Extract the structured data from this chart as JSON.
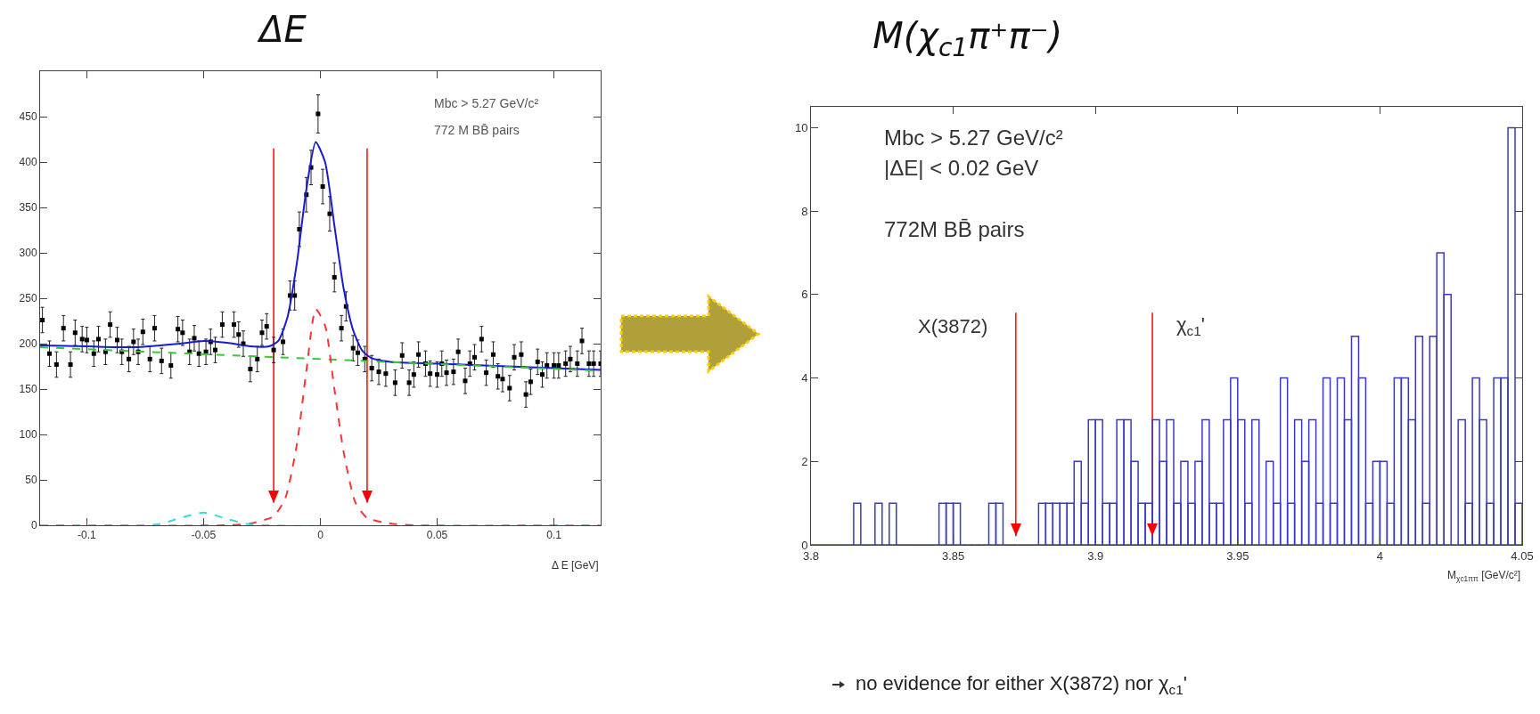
{
  "chart_data": [
    {
      "type": "scatter",
      "title": "ΔE",
      "xlabel": "Δ E [GeV]",
      "annotations": [
        "Mbc > 5.27 GeV/c²",
        "772 M BB̄ pairs"
      ],
      "xlim": [
        -0.12,
        0.12
      ],
      "ylim": [
        0,
        500
      ],
      "xticks": [
        -0.1,
        -0.05,
        0,
        0.05,
        0.1
      ],
      "yticks": [
        0,
        50,
        100,
        150,
        200,
        250,
        300,
        350,
        400,
        450
      ],
      "grid": false,
      "series": [
        {
          "type": "scatter",
          "color": "#000000",
          "marker": "square",
          "x": [
            -0.119,
            -0.116,
            -0.113,
            -0.11,
            -0.107,
            -0.105,
            -0.102,
            -0.1,
            -0.097,
            -0.095,
            -0.092,
            -0.09,
            -0.087,
            -0.085,
            -0.082,
            -0.08,
            -0.078,
            -0.076,
            -0.073,
            -0.071,
            -0.068,
            -0.064,
            -0.061,
            -0.059,
            -0.056,
            -0.054,
            -0.052,
            -0.049,
            -0.047,
            -0.045,
            -0.042,
            -0.037,
            -0.035,
            -0.033,
            -0.03,
            -0.027,
            -0.025,
            -0.023,
            -0.02,
            -0.016,
            -0.013,
            -0.011,
            -0.009,
            -0.006,
            -0.004,
            -0.001,
            0.001,
            0.004,
            0.006,
            0.009,
            0.011,
            0.014,
            0.016,
            0.019,
            0.022,
            0.025,
            0.028,
            0.032,
            0.035,
            0.038,
            0.04,
            0.042,
            0.045,
            0.047,
            0.05,
            0.052,
            0.054,
            0.057,
            0.059,
            0.062,
            0.064,
            0.066,
            0.069,
            0.071,
            0.074,
            0.076,
            0.078,
            0.081,
            0.083,
            0.086,
            0.088,
            0.09,
            0.093,
            0.095,
            0.097,
            0.1,
            0.102,
            0.105,
            0.107,
            0.11,
            0.112,
            0.115,
            0.117,
            0.12
          ],
          "values": [
            226,
            189,
            177,
            217,
            177,
            212,
            205,
            204,
            189,
            205,
            191,
            221,
            204,
            191,
            183,
            202,
            191,
            213,
            183,
            217,
            181,
            176,
            216,
            212,
            191,
            206,
            189,
            191,
            202,
            193,
            221,
            221,
            210,
            200,
            172,
            183,
            212,
            219,
            193,
            202,
            253,
            253,
            326,
            364,
            394,
            453,
            373,
            343,
            273,
            217,
            241,
            195,
            190,
            183,
            173,
            169,
            167,
            157,
            187,
            157,
            166,
            188,
            178,
            167,
            166,
            178,
            168,
            169,
            191,
            159,
            178,
            185,
            205,
            168,
            188,
            164,
            161,
            151,
            185,
            188,
            144,
            158,
            180,
            166,
            176,
            176,
            176,
            178,
            183,
            178,
            203,
            178,
            178,
            178
          ],
          "errors": [
            14,
            14,
            14,
            14,
            14,
            14,
            14,
            14,
            14,
            14,
            14,
            14,
            14,
            14,
            14,
            14,
            14,
            14,
            14,
            14,
            14,
            14,
            14,
            14,
            14,
            14,
            14,
            14,
            14,
            14,
            14,
            14,
            14,
            14,
            14,
            14,
            14,
            14,
            14,
            14,
            16,
            16,
            19,
            19,
            19,
            21,
            19,
            19,
            16,
            14,
            16,
            14,
            14,
            14,
            14,
            14,
            14,
            14,
            14,
            14,
            14,
            14,
            14,
            14,
            14,
            14,
            14,
            14,
            14,
            14,
            14,
            14,
            14,
            14,
            14,
            14,
            14,
            14,
            14,
            14,
            14,
            14,
            14,
            14,
            14,
            14,
            14,
            14,
            14,
            14,
            14,
            14,
            14,
            14
          ]
        },
        {
          "type": "line",
          "color": "#1a1ad0",
          "line_style": "solid",
          "x": [
            -0.12,
            -0.1,
            -0.08,
            -0.06,
            -0.05,
            -0.04,
            -0.03,
            -0.022,
            -0.018,
            -0.014,
            -0.01,
            -0.006,
            -0.002,
            0.002,
            0.006,
            0.01,
            0.014,
            0.018,
            0.022,
            0.03,
            0.05,
            0.08,
            0.1,
            0.12
          ],
          "values": [
            198,
            197,
            196,
            200,
            203,
            201,
            197,
            197,
            203,
            230,
            290,
            370,
            422,
            400,
            330,
            260,
            215,
            192,
            184,
            180,
            178,
            175,
            173,
            171
          ]
        },
        {
          "type": "line",
          "color": "#33cc33",
          "line_style": "dashed",
          "x": [
            -0.12,
            0.12
          ],
          "values": [
            196,
            170
          ]
        },
        {
          "type": "line",
          "color": "#ff3333",
          "line_style": "dashed",
          "x": [
            -0.12,
            -0.04,
            -0.03,
            -0.02,
            -0.015,
            -0.01,
            -0.006,
            -0.002,
            0.002,
            0.006,
            0.01,
            0.015,
            0.02,
            0.03,
            0.04,
            0.12
          ],
          "values": [
            0,
            0,
            2,
            10,
            30,
            90,
            170,
            238,
            220,
            150,
            80,
            25,
            8,
            2,
            0,
            0
          ]
        },
        {
          "type": "line",
          "color": "#33dddd",
          "line_style": "dashed",
          "x": [
            -0.12,
            -0.07,
            -0.06,
            -0.05,
            -0.04,
            -0.03,
            0.12
          ],
          "values": [
            0,
            1,
            8,
            14,
            7,
            1,
            0
          ]
        }
      ],
      "ref_lines": [
        {
          "axis": "x",
          "value": -0.02,
          "color": "#ff0000"
        },
        {
          "axis": "x",
          "value": 0.02,
          "color": "#ff0000"
        }
      ]
    },
    {
      "type": "histogram",
      "title": "M(χ$_{c1}$π⁺π⁻)",
      "xlabel": "M$_{χc1ππ}$ [GeV/c²]",
      "annotations": [
        "Mbc > 5.27 GeV/c²",
        "|ΔE| < 0.02 GeV",
        "772M BB̄ pairs",
        "no evidence for either X(3872) nor χ$_{c1}$'"
      ],
      "xlim": [
        3.8,
        4.05
      ],
      "ylim": [
        0,
        10.5
      ],
      "xticks": [
        3.8,
        3.85,
        3.9,
        3.95,
        4,
        4.05
      ],
      "yticks": [
        0,
        2,
        4,
        6,
        8,
        10
      ],
      "grid": false,
      "color": "#3a3ac0",
      "bins": [
        3.8,
        3.8025,
        3.805,
        3.8075,
        3.81,
        3.8125,
        3.815,
        3.8175,
        3.82,
        3.8225,
        3.825,
        3.8275,
        3.83,
        3.8325,
        3.835,
        3.8375,
        3.84,
        3.8425,
        3.845,
        3.8475,
        3.85,
        3.8525,
        3.855,
        3.8575,
        3.86,
        3.8625,
        3.865,
        3.8675,
        3.87,
        3.8725,
        3.875,
        3.8775,
        3.88,
        3.8825,
        3.885,
        3.8875,
        3.89,
        3.8925,
        3.895,
        3.8975,
        3.9,
        3.9025,
        3.905,
        3.9075,
        3.91,
        3.9125,
        3.915,
        3.9175,
        3.92,
        3.9225,
        3.925,
        3.9275,
        3.93,
        3.9325,
        3.935,
        3.9375,
        3.94,
        3.9425,
        3.945,
        3.9475,
        3.95,
        3.9525,
        3.955,
        3.9575,
        3.96,
        3.9625,
        3.965,
        3.9675,
        3.97,
        3.9725,
        3.975,
        3.9775,
        3.98,
        3.9825,
        3.985,
        3.9875,
        3.99,
        3.9925,
        3.995,
        3.9975,
        4,
        4.0025,
        4.005,
        4.0075,
        4.01,
        4.0125,
        4.015,
        4.0175,
        4.02,
        4.0225,
        4.025,
        4.0275,
        4.03,
        4.0325,
        4.035,
        4.0375,
        4.04,
        4.0425,
        4.045,
        4.0475,
        4.05
      ],
      "values": [
        0,
        0,
        0,
        0,
        0,
        0,
        1,
        0,
        0,
        1,
        0,
        1,
        0,
        0,
        0,
        0,
        0,
        0,
        1,
        1,
        1,
        0,
        0,
        0,
        0,
        1,
        1,
        0,
        0,
        0,
        0,
        0,
        1,
        1,
        1,
        1,
        1,
        2,
        1,
        3,
        3,
        1,
        1,
        3,
        3,
        2,
        1,
        1,
        3,
        2,
        3,
        1,
        2,
        1,
        2,
        3,
        1,
        1,
        3,
        4,
        3,
        1,
        3,
        0,
        2,
        1,
        4,
        1,
        3,
        2,
        3,
        1,
        4,
        1,
        4,
        3,
        5,
        4,
        1,
        2,
        2,
        1,
        4,
        4,
        3,
        5,
        1,
        5,
        7,
        6,
        0,
        3,
        1,
        4,
        3,
        1,
        4,
        4,
        10,
        1
      ],
      "ref_lines": [
        {
          "axis": "x",
          "value": 3.872,
          "label": "X(3872)",
          "color": "#ff0000"
        },
        {
          "axis": "x",
          "value": 3.92,
          "label": "χ$_{c1}$'",
          "color": "#ff0000"
        }
      ]
    }
  ]
}
